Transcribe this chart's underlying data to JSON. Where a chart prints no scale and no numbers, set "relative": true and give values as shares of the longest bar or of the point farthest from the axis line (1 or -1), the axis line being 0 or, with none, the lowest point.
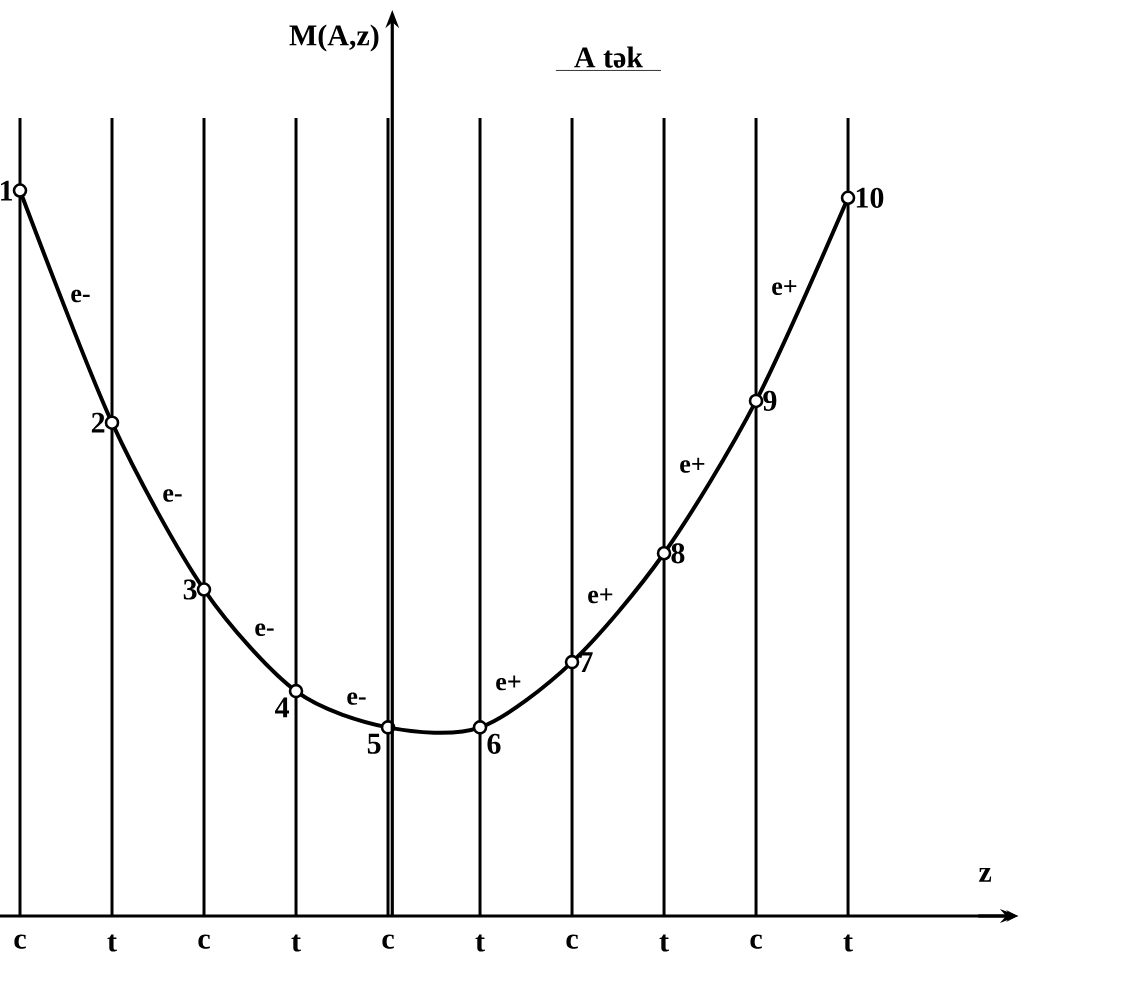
{
  "chart_data": {
    "type": "line",
    "title": "A   tək",
    "xlabel": "z",
    "ylabel": "M(A,z)",
    "categories": [
      "c",
      "t",
      "c",
      "t",
      "c",
      "t",
      "c",
      "t",
      "c",
      "t"
    ],
    "relative": true,
    "series": [
      {
        "color": "#000000",
        "values": [
          1,
          0.68,
          0.45,
          0.31,
          0.26,
          0.26,
          0.35,
          0.5,
          0.71,
          0.99
        ]
      }
    ],
    "annotations": [
      "1",
      "2",
      "3",
      "4",
      "5",
      "6",
      "7",
      "8",
      "9",
      "10",
      "e-",
      "e-",
      "e-",
      "e-",
      "e+",
      "e+",
      "e+",
      "e+"
    ],
    "marker": "circle",
    "line_style": "solid",
    "grid": "x"
  }
}
